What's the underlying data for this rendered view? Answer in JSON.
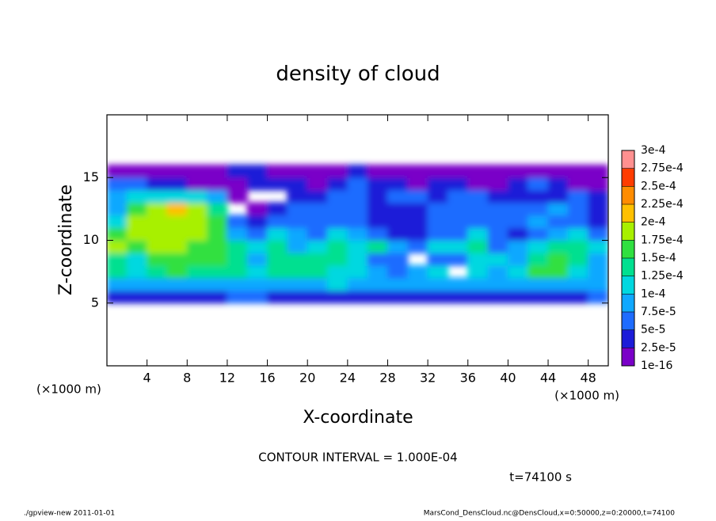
{
  "chart_data": {
    "type": "contour",
    "title": "density of cloud",
    "x_label": "X-coordinate",
    "y_label": "Z-coordinate",
    "x_unit_left": "(×1000 m)",
    "x_unit_right": "(×1000 m)",
    "annotation": "CONTOUR INTERVAL = 1.000E-04",
    "time_label": "t=74100 s",
    "footer_left": "./gpview-new   2011-01-01",
    "footer_right": "MarsCond_DensCloud.nc@DensCloud,x=0:50000,z=0:20000,t=74100",
    "xlim": [
      0,
      50
    ],
    "ylim": [
      0,
      20
    ],
    "xticks": [
      4,
      8,
      12,
      16,
      20,
      24,
      28,
      32,
      36,
      40,
      44,
      48
    ],
    "yticks": [
      5,
      10,
      15
    ],
    "x": [
      1,
      3,
      5,
      7,
      9,
      11,
      13,
      15,
      17,
      19,
      21,
      23,
      25,
      27,
      29,
      31,
      33,
      35,
      37,
      39,
      41,
      43,
      45,
      47,
      49
    ],
    "z": [
      5.5,
      6.5,
      7.5,
      8.5,
      9.5,
      10.5,
      11.5,
      12.5,
      13.5,
      14.5,
      15.5
    ],
    "values": [
      [
        3.7e-05,
        3.7e-05,
        3.7e-05,
        3.7e-05,
        3.7e-05,
        3.7e-05,
        6.2e-05,
        6.2e-05,
        3.7e-05,
        3.7e-05,
        3.7e-05,
        3.7e-05,
        3.7e-05,
        3.7e-05,
        3.7e-05,
        3.7e-05,
        3.7e-05,
        3.7e-05,
        3.7e-05,
        3.7e-05,
        3.7e-05,
        3.7e-05,
        3.7e-05,
        3.7e-05,
        6.2e-05
      ],
      [
        8.7e-05,
        8.7e-05,
        8.7e-05,
        8.7e-05,
        8.7e-05,
        8.7e-05,
        8.7e-05,
        8.7e-05,
        8.7e-05,
        8.7e-05,
        8.7e-05,
        0.00011,
        8.7e-05,
        8.7e-05,
        8.7e-05,
        8.7e-05,
        8.7e-05,
        8.7e-05,
        8.7e-05,
        8.7e-05,
        8.7e-05,
        8.7e-05,
        8.7e-05,
        8.7e-05,
        8.7e-05
      ],
      [
        0.00014,
        0.00011,
        0.00014,
        0.00016,
        0.00014,
        0.00014,
        0.00014,
        0.00011,
        0.00014,
        0.00014,
        0.00014,
        0.00011,
        0.00011,
        8.7e-05,
        6.2e-05,
        8.7e-05,
        0.00011,
        null,
        0.00011,
        8.7e-05,
        0.00011,
        0.00016,
        0.00016,
        0.00011,
        8.7e-05
      ],
      [
        0.00014,
        0.00011,
        0.00016,
        0.00016,
        0.00016,
        0.00016,
        0.00014,
        8.7e-05,
        0.00014,
        0.00014,
        0.00014,
        0.00014,
        0.00011,
        6.2e-05,
        6.2e-05,
        null,
        6.2e-05,
        6.2e-05,
        0.00011,
        0.00011,
        8.7e-05,
        0.00014,
        0.00016,
        0.00014,
        8.7e-05
      ],
      [
        0.00019,
        0.00016,
        0.00019,
        0.00019,
        0.00016,
        0.00016,
        0.00014,
        0.00011,
        0.00014,
        8.7e-05,
        0.00011,
        0.00014,
        0.00011,
        0.00014,
        8.7e-05,
        6.2e-05,
        0.00011,
        0.00011,
        0.00014,
        6.2e-05,
        8.7e-05,
        0.00011,
        0.00014,
        0.00014,
        0.00011
      ],
      [
        0.00016,
        0.00019,
        0.00019,
        0.00019,
        0.00019,
        0.00016,
        8.7e-05,
        6.2e-05,
        0.00011,
        8.7e-05,
        6.2e-05,
        0.00011,
        8.7e-05,
        6.2e-05,
        3.7e-05,
        3.7e-05,
        6.2e-05,
        6.2e-05,
        0.00011,
        6.2e-05,
        3.7e-05,
        6.2e-05,
        8.7e-05,
        0.00011,
        6.2e-05
      ],
      [
        0.00011,
        0.00019,
        0.00019,
        0.00019,
        0.00019,
        0.00016,
        6.2e-05,
        3.7e-05,
        6.2e-05,
        6.2e-05,
        6.2e-05,
        6.2e-05,
        6.2e-05,
        3.7e-05,
        3.7e-05,
        3.7e-05,
        6.2e-05,
        6.2e-05,
        6.2e-05,
        6.2e-05,
        6.2e-05,
        8.7e-05,
        6.2e-05,
        6.2e-05,
        3.7e-05
      ],
      [
        8.7e-05,
        0.00016,
        0.00019,
        0.00021,
        0.00019,
        0.00014,
        null,
        1.2e-05,
        3.7e-05,
        6.2e-05,
        6.2e-05,
        6.2e-05,
        6.2e-05,
        3.7e-05,
        3.7e-05,
        3.7e-05,
        6.2e-05,
        6.2e-05,
        6.2e-05,
        6.2e-05,
        6.2e-05,
        6.2e-05,
        8.7e-05,
        6.2e-05,
        3.7e-05
      ],
      [
        8.7e-05,
        0.00011,
        0.00011,
        0.00011,
        0.00011,
        8.7e-05,
        1.2e-05,
        null,
        null,
        3.7e-05,
        3.7e-05,
        6.2e-05,
        6.2e-05,
        3.7e-05,
        6.2e-05,
        6.2e-05,
        3.7e-05,
        6.2e-05,
        6.2e-05,
        3.7e-05,
        3.7e-05,
        3.7e-05,
        3.7e-05,
        6.2e-05,
        3.7e-05
      ],
      [
        6.2e-05,
        6.2e-05,
        3.7e-05,
        3.7e-05,
        1.2e-05,
        1.2e-05,
        1.2e-05,
        3.7e-05,
        3.7e-05,
        3.7e-05,
        1.2e-05,
        3.7e-05,
        6.2e-05,
        3.7e-05,
        3.7e-05,
        1.2e-05,
        3.7e-05,
        3.7e-05,
        1.2e-05,
        1.2e-05,
        3.7e-05,
        6.2e-05,
        3.7e-05,
        1.2e-05,
        1.2e-05
      ],
      [
        1.2e-05,
        1.2e-05,
        1.2e-05,
        1.2e-05,
        1.2e-05,
        1.2e-05,
        3.7e-05,
        3.7e-05,
        1.2e-05,
        1.2e-05,
        1.2e-05,
        1.2e-05,
        3.7e-05,
        1.2e-05,
        1.2e-05,
        1.2e-05,
        1.2e-05,
        1.2e-05,
        1.2e-05,
        1.2e-05,
        1.2e-05,
        1.2e-05,
        1.2e-05,
        1.2e-05,
        1.2e-05
      ]
    ],
    "levels": [
      {
        "value": 1e-16,
        "label": "1e-16"
      },
      {
        "value": 2.5e-05,
        "label": "2.5e-5"
      },
      {
        "value": 5e-05,
        "label": "5e-5"
      },
      {
        "value": 7.5e-05,
        "label": "7.5e-5"
      },
      {
        "value": 0.0001,
        "label": "1e-4"
      },
      {
        "value": 0.000125,
        "label": "1.25e-4"
      },
      {
        "value": 0.00015,
        "label": "1.5e-4"
      },
      {
        "value": 0.000175,
        "label": "1.75e-4"
      },
      {
        "value": 0.0002,
        "label": "2e-4"
      },
      {
        "value": 0.000225,
        "label": "2.25e-4"
      },
      {
        "value": 0.00025,
        "label": "2.5e-4"
      },
      {
        "value": 0.000275,
        "label": "2.75e-4"
      },
      {
        "value": 0.0003,
        "label": "3e-4"
      }
    ],
    "colors": [
      "#7a00c8",
      "#1c1cd8",
      "#1e6cff",
      "#10a8ff",
      "#00d8e0",
      "#00e090",
      "#30e040",
      "#a8f000",
      "#ffc000",
      "#ff8c00",
      "#ff3c00",
      "#ff9090"
    ]
  }
}
